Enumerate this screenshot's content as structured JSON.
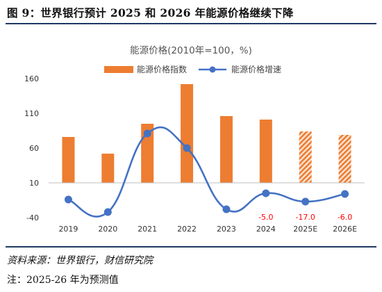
{
  "figure": {
    "title": "图 9：世界银行预计 2025 和 2026 年能源价格继续下降",
    "source": "资料来源：世界银行，财信研究院",
    "note": "注：2025-26 年为预测值"
  },
  "chart_data": {
    "type": "bar+line",
    "title": "能源价格(2010年=100，%)",
    "categories": [
      "2019",
      "2020",
      "2021",
      "2022",
      "2023",
      "2024",
      "2025E",
      "2026E"
    ],
    "series": [
      {
        "name": "能源价格指数",
        "type": "bar",
        "color": "#ed7d31",
        "values": [
          76,
          52,
          95,
          152,
          106,
          101,
          84,
          79
        ],
        "forecast": [
          false,
          false,
          false,
          false,
          false,
          false,
          true,
          true
        ]
      },
      {
        "name": "能源价格增速",
        "type": "line",
        "color": "#4472c4",
        "values": [
          -14,
          -32,
          81,
          60,
          -28,
          -5,
          -17,
          -6
        ]
      }
    ],
    "data_labels": [
      {
        "category": "2024",
        "text": "-5.0"
      },
      {
        "category": "2025E",
        "text": "-17.0"
      },
      {
        "category": "2026E",
        "text": "-6.0"
      }
    ],
    "yticks": [
      "160",
      "110",
      "60",
      "10",
      "-40"
    ],
    "ylim": [
      -40,
      160
    ],
    "grid": false,
    "legend_position": "top-center",
    "label_color": "#ff0000"
  }
}
